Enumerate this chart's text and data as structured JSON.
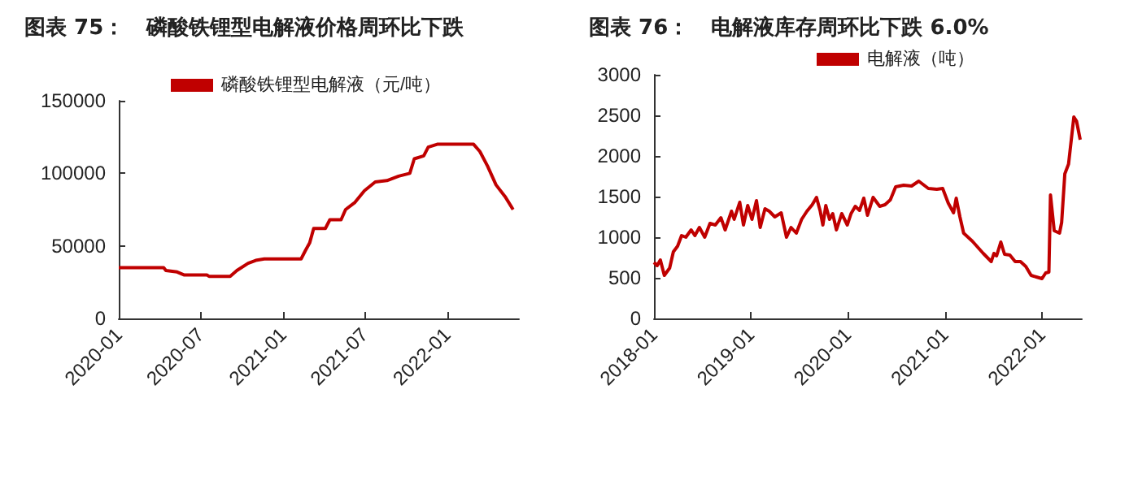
{
  "chart_data": [
    {
      "type": "line",
      "title": "图表 75：   磷酸铁锂型电解液价格周环比下跌",
      "legend": "top",
      "grid": false,
      "xlim": [
        "2020-01-01",
        "2022-06-10"
      ],
      "xticks": [
        "2020-01",
        "2020-07",
        "2021-01",
        "2021-07",
        "2022-01"
      ],
      "ylim": [
        0,
        150000
      ],
      "yticks": [
        0,
        50000,
        100000,
        150000
      ],
      "series": [
        {
          "name": "磷酸铁锂型电解液（元/吨）",
          "color": "#c00000",
          "x": [
            "2020-01-01",
            "2020-04-10",
            "2020-04-15",
            "2020-05-10",
            "2020-05-25",
            "2020-07-15",
            "2020-07-20",
            "2020-09-05",
            "2020-09-20",
            "2020-10-15",
            "2020-11-01",
            "2020-11-20",
            "2021-02-10",
            "2021-02-20",
            "2021-03-01",
            "2021-03-10",
            "2021-04-05",
            "2021-04-15",
            "2021-05-10",
            "2021-05-20",
            "2021-06-10",
            "2021-07-01",
            "2021-07-25",
            "2021-08-20",
            "2021-09-15",
            "2021-10-10",
            "2021-10-20",
            "2021-11-10",
            "2021-11-20",
            "2021-12-10",
            "2022-03-01",
            "2022-03-15",
            "2022-04-01",
            "2022-04-20",
            "2022-05-10",
            "2022-05-28"
          ],
          "values": [
            35000,
            35000,
            33000,
            32000,
            30000,
            30000,
            29000,
            29000,
            33000,
            38000,
            40000,
            41000,
            41000,
            47000,
            52000,
            62000,
            62000,
            68000,
            68000,
            75000,
            80000,
            88000,
            94000,
            95000,
            98000,
            100000,
            110000,
            112000,
            118000,
            120000,
            120000,
            115000,
            105000,
            92000,
            84000,
            75000
          ]
        }
      ]
    },
    {
      "type": "line",
      "title": "图表 76：   电解液库存周环比下跌 6.0%",
      "legend": "top",
      "grid": false,
      "xlim": [
        "2018-01-01",
        "2022-05-31"
      ],
      "xticks": [
        "2018-01",
        "2019-01",
        "2020-01",
        "2021-01",
        "2022-01"
      ],
      "ylim": [
        0,
        3000
      ],
      "yticks": [
        0,
        500,
        1000,
        1500,
        2000,
        2500,
        3000
      ],
      "series": [
        {
          "name": "电解液（吨）",
          "color": "#c00000",
          "x": [
            "2018-01-01",
            "2018-01-13",
            "2018-01-25",
            "2018-02-09",
            "2018-03-01",
            "2018-03-15",
            "2018-03-31",
            "2018-04-15",
            "2018-05-01",
            "2018-05-21",
            "2018-06-04",
            "2018-06-21",
            "2018-07-11",
            "2018-07-31",
            "2018-08-20",
            "2018-09-10",
            "2018-09-26",
            "2018-10-20",
            "2018-10-30",
            "2018-11-20",
            "2018-12-04",
            "2018-12-20",
            "2019-01-05",
            "2019-01-22",
            "2019-02-05",
            "2019-02-23",
            "2019-03-11",
            "2019-04-01",
            "2019-04-25",
            "2019-05-15",
            "2019-06-01",
            "2019-06-21",
            "2019-07-11",
            "2019-07-31",
            "2019-08-20",
            "2019-09-05",
            "2019-09-19",
            "2019-09-29",
            "2019-10-10",
            "2019-10-24",
            "2019-11-05",
            "2019-11-19",
            "2019-12-09",
            "2019-12-30",
            "2020-01-13",
            "2020-01-29",
            "2020-02-14",
            "2020-03-01",
            "2020-03-15",
            "2020-04-05",
            "2020-04-30",
            "2020-05-20",
            "2020-06-09",
            "2020-06-29",
            "2020-07-29",
            "2020-08-28",
            "2020-09-24",
            "2020-10-10",
            "2020-10-30",
            "2020-12-01",
            "2020-12-23",
            "2021-01-13",
            "2021-02-02",
            "2021-02-12",
            "2021-02-26",
            "2021-03-12",
            "2021-04-14",
            "2021-05-25",
            "2021-06-24",
            "2021-07-04",
            "2021-07-14",
            "2021-07-30",
            "2021-08-13",
            "2021-09-02",
            "2021-09-22",
            "2021-10-12",
            "2021-11-01",
            "2021-11-21",
            "2021-12-11",
            "2022-01-01",
            "2022-01-15",
            "2022-01-27",
            "2022-02-02",
            "2022-02-16",
            "2022-03-08",
            "2022-03-16",
            "2022-03-28",
            "2022-04-11",
            "2022-05-01",
            "2022-05-11",
            "2022-05-25"
          ],
          "values": [
            690,
            650,
            720,
            530,
            620,
            820,
            890,
            1020,
            1000,
            1090,
            1020,
            1120,
            1000,
            1170,
            1150,
            1240,
            1090,
            1320,
            1220,
            1430,
            1150,
            1390,
            1220,
            1450,
            1120,
            1350,
            1320,
            1250,
            1300,
            1000,
            1120,
            1050,
            1220,
            1320,
            1400,
            1490,
            1320,
            1150,
            1390,
            1220,
            1290,
            1090,
            1290,
            1150,
            1290,
            1380,
            1330,
            1480,
            1270,
            1490,
            1380,
            1400,
            1460,
            1620,
            1640,
            1630,
            1690,
            1650,
            1600,
            1590,
            1600,
            1420,
            1300,
            1480,
            1250,
            1050,
            950,
            800,
            700,
            800,
            770,
            940,
            790,
            780,
            700,
            700,
            640,
            530,
            510,
            490,
            560,
            570,
            1520,
            1080,
            1050,
            1180,
            1780,
            1900,
            2480,
            2430,
            2200
          ]
        }
      ]
    }
  ]
}
